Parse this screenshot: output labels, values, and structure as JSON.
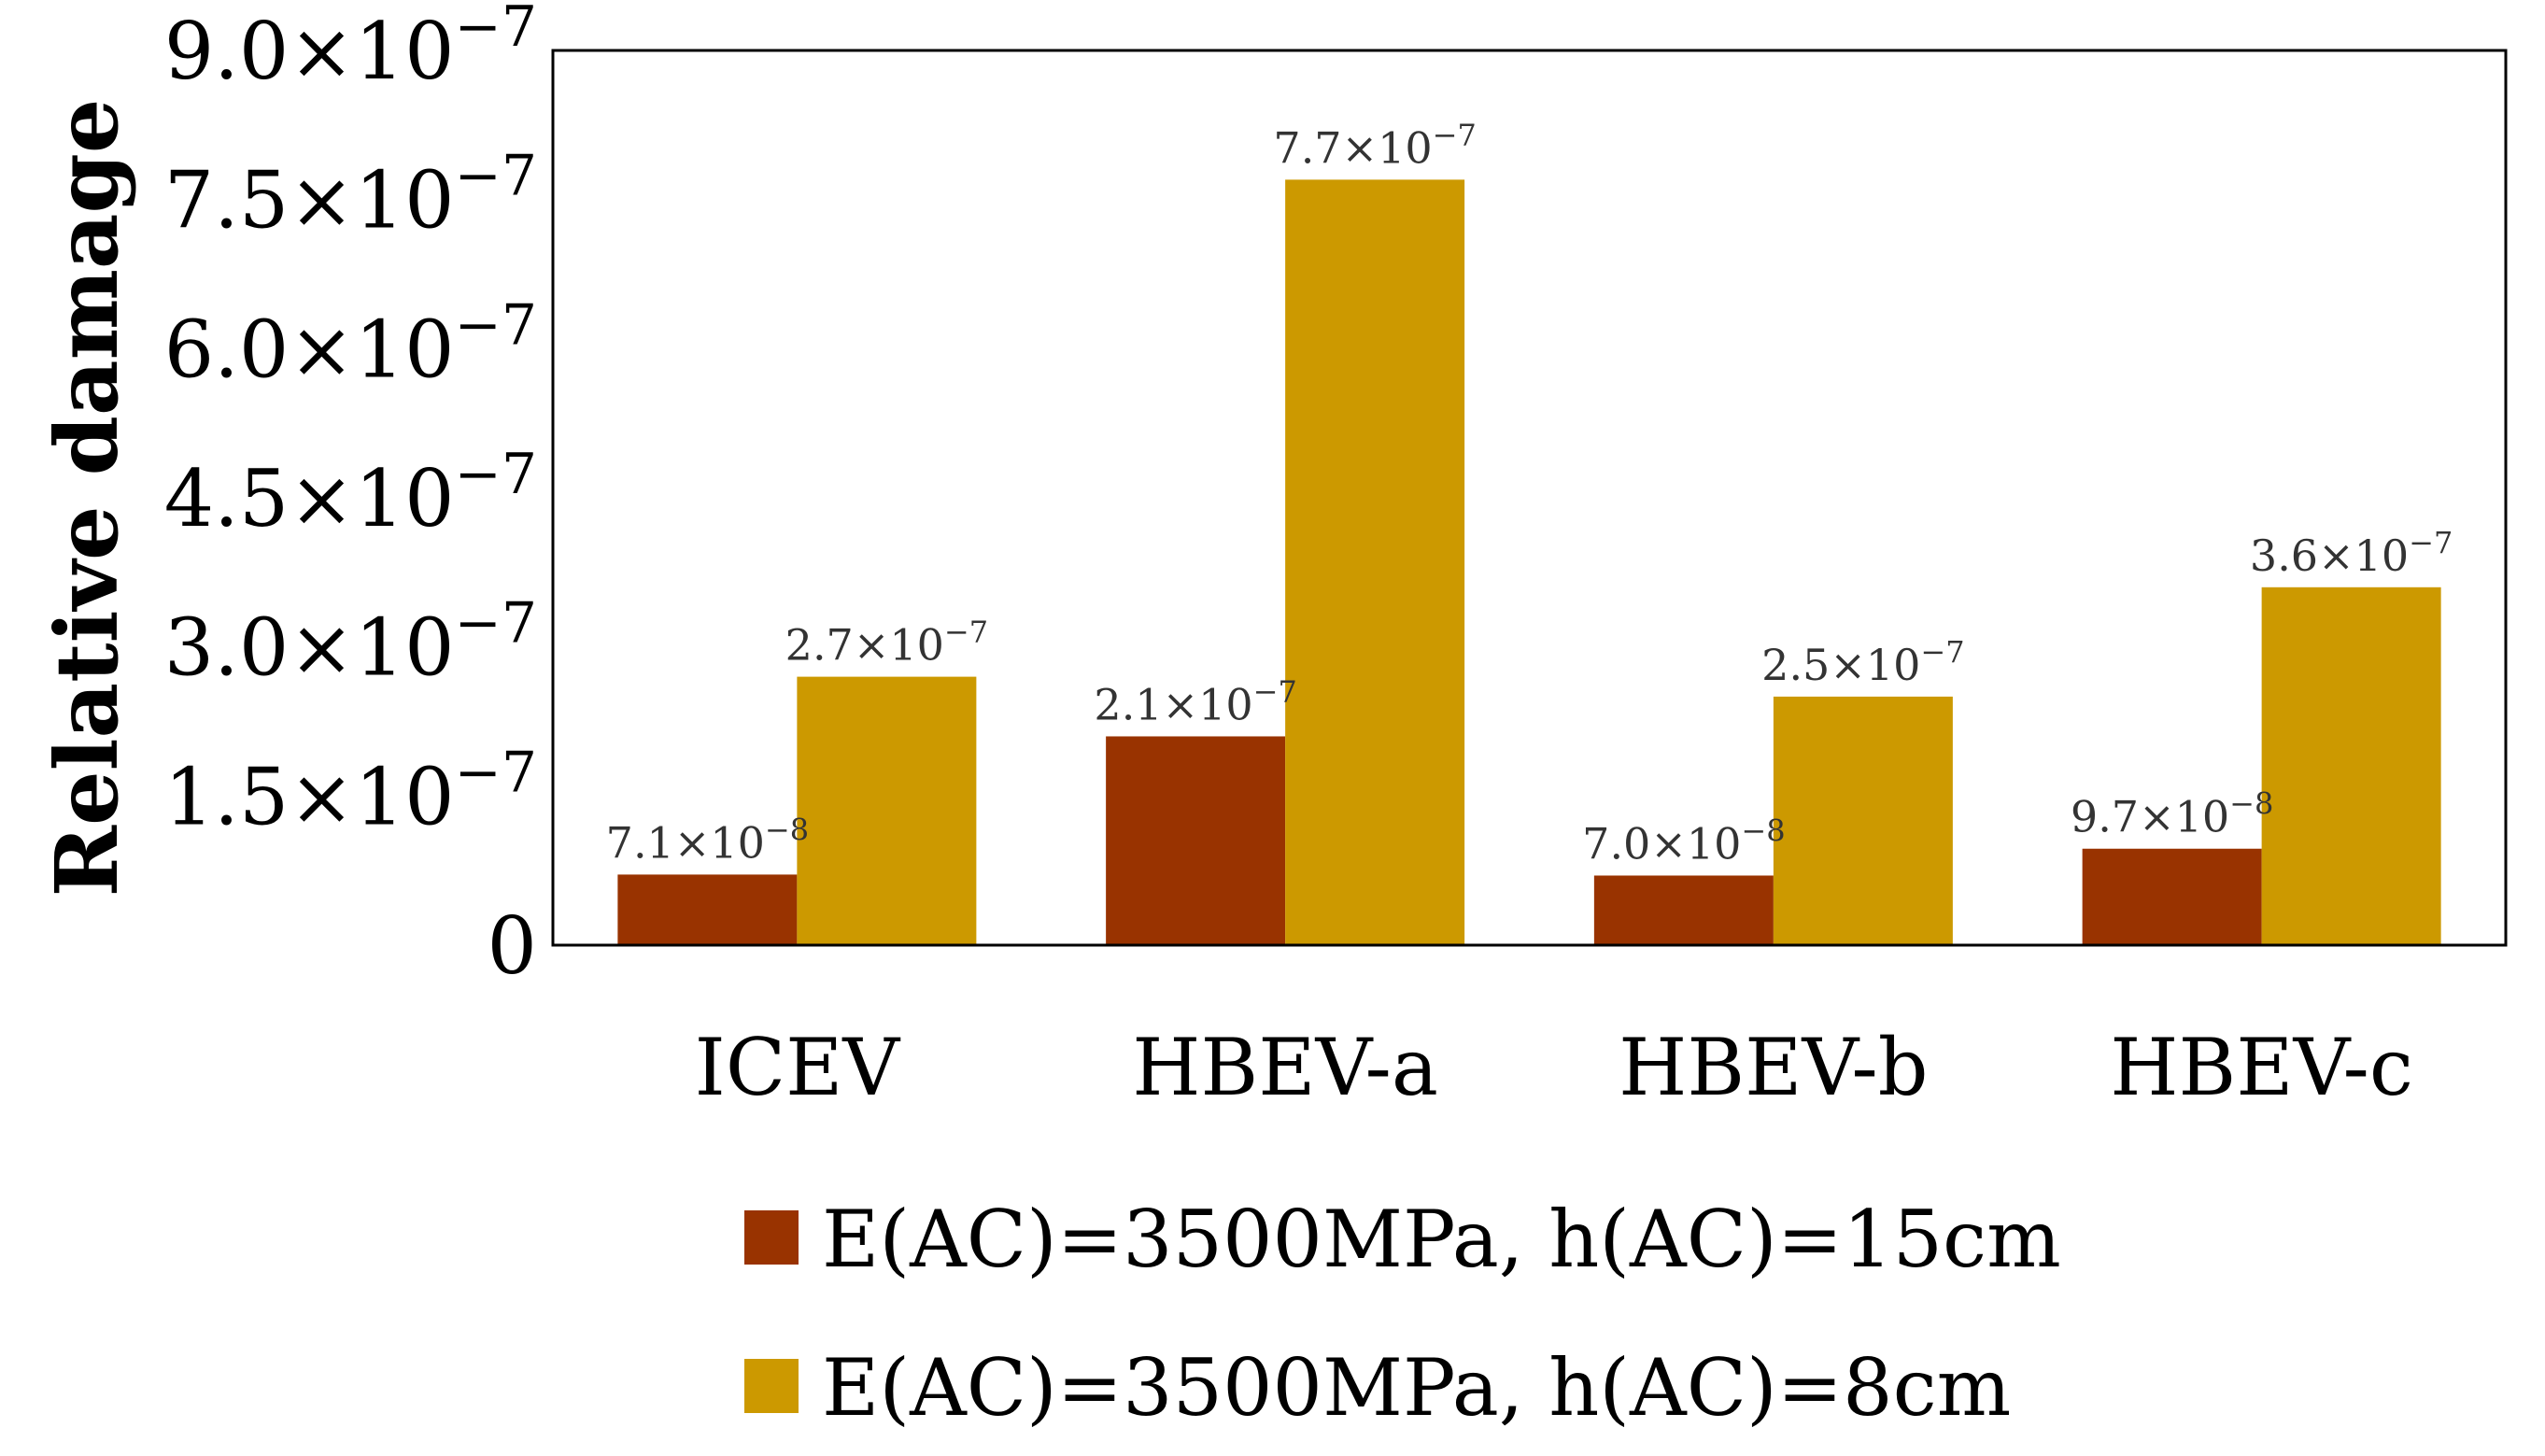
{
  "chart_data": {
    "type": "bar",
    "title": "",
    "xlabel": "",
    "ylabel": "Relative damage",
    "ylim": [
      0,
      9e-07
    ],
    "yticks": [
      0,
      1.5e-07,
      3e-07,
      4.5e-07,
      6e-07,
      7.5e-07,
      9e-07
    ],
    "ytick_labels": [
      {
        "mantissa": "0",
        "exponent": ""
      },
      {
        "mantissa": "1.5×10",
        "exponent": "−7"
      },
      {
        "mantissa": "3.0×10",
        "exponent": "−7"
      },
      {
        "mantissa": "4.5×10",
        "exponent": "−7"
      },
      {
        "mantissa": "6.0×10",
        "exponent": "−7"
      },
      {
        "mantissa": "7.5×10",
        "exponent": "−7"
      },
      {
        "mantissa": "9.0×10",
        "exponent": "−7"
      }
    ],
    "categories": [
      "ICEV",
      "HBEV-a",
      "HBEV-b",
      "HBEV-c"
    ],
    "grid": false,
    "legend_position": "bottom",
    "series": [
      {
        "name": "E(AC)=3500MPa, h(AC)=15cm",
        "color": "#993300",
        "values": [
          7.1e-08,
          2.1e-07,
          7e-08,
          9.7e-08
        ],
        "labels": [
          {
            "mantissa": "7.1×10",
            "exponent": "−8"
          },
          {
            "mantissa": "2.1×10",
            "exponent": "−7"
          },
          {
            "mantissa": "7.0×10",
            "exponent": "−8"
          },
          {
            "mantissa": "9.7×10",
            "exponent": "−8"
          }
        ]
      },
      {
        "name": "E(AC)=3500MPa, h(AC)=8cm",
        "color": "#CC9900",
        "values": [
          2.7e-07,
          7.7e-07,
          2.5e-07,
          3.6e-07
        ],
        "labels": [
          {
            "mantissa": "2.7×10",
            "exponent": "−7"
          },
          {
            "mantissa": "7.7×10",
            "exponent": "−7"
          },
          {
            "mantissa": "2.5×10",
            "exponent": "−7"
          },
          {
            "mantissa": "3.6×10",
            "exponent": "−7"
          }
        ]
      }
    ]
  }
}
